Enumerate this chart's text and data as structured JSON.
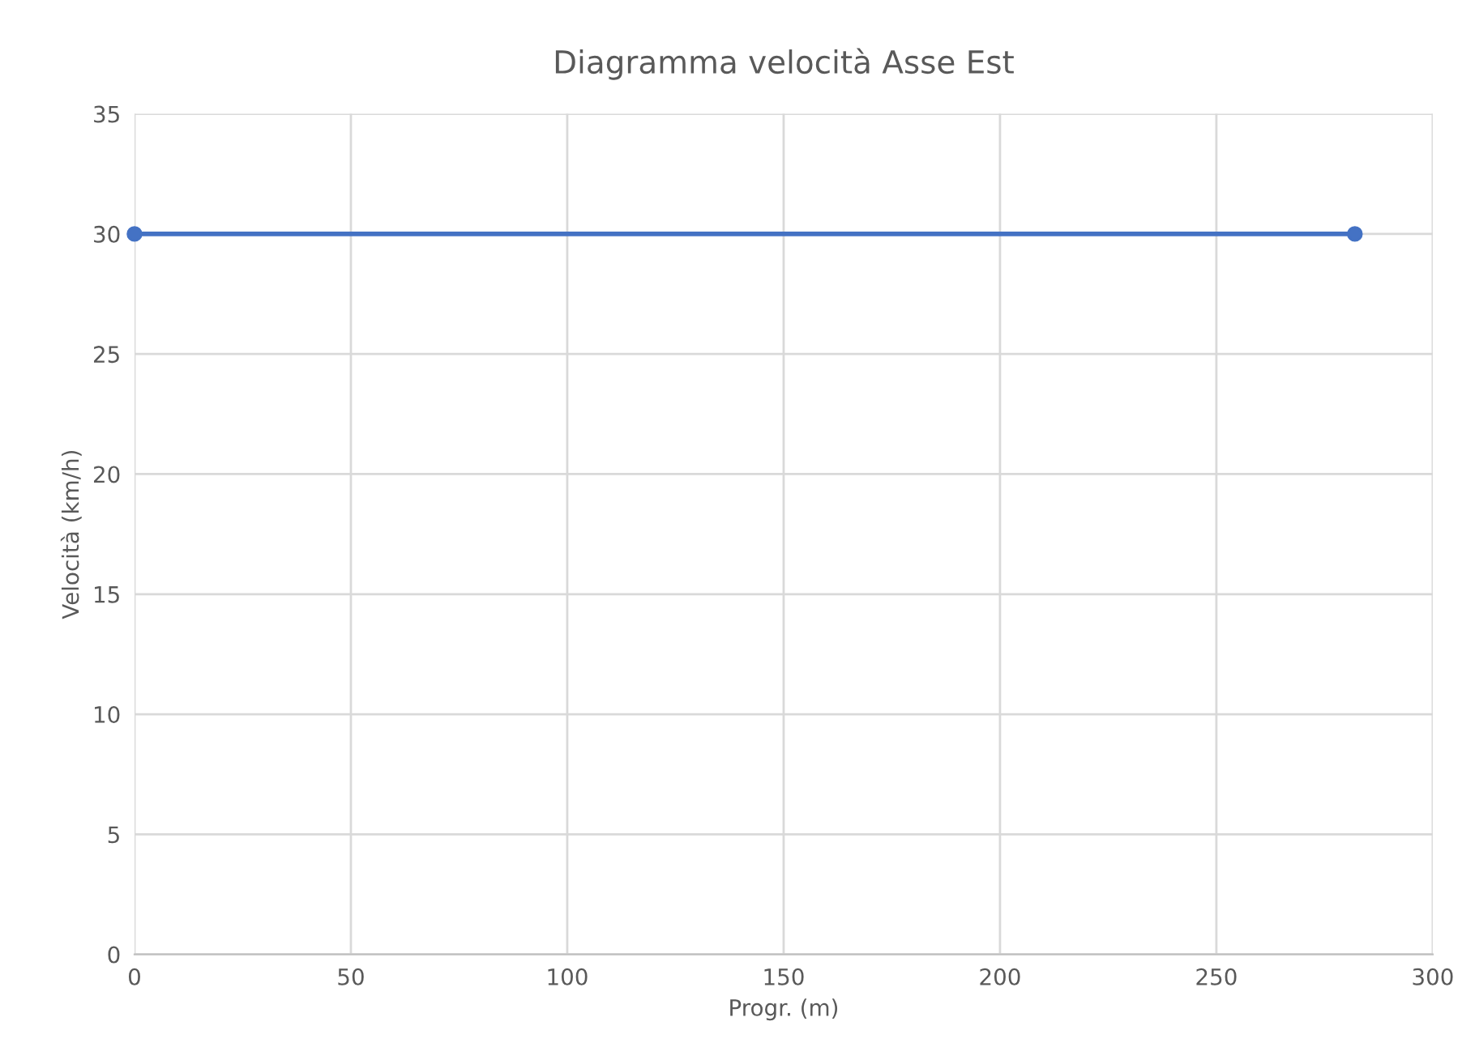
{
  "chart_data": {
    "type": "line",
    "title": "Diagramma velocità Asse Est",
    "xlabel": "Progr. (m)",
    "ylabel": "Velocità (km/h)",
    "x": [
      0,
      282
    ],
    "series": [
      {
        "color": "#4472c4",
        "values": [
          30,
          30
        ]
      }
    ],
    "xlim": [
      0,
      300
    ],
    "xticks": [
      0,
      50,
      100,
      150,
      200,
      250,
      300
    ],
    "ylim": [
      0,
      35
    ],
    "yticks": [
      0,
      5,
      10,
      15,
      20,
      25,
      30,
      35
    ],
    "grid": true,
    "marker": "circle",
    "line_style": "solid"
  }
}
